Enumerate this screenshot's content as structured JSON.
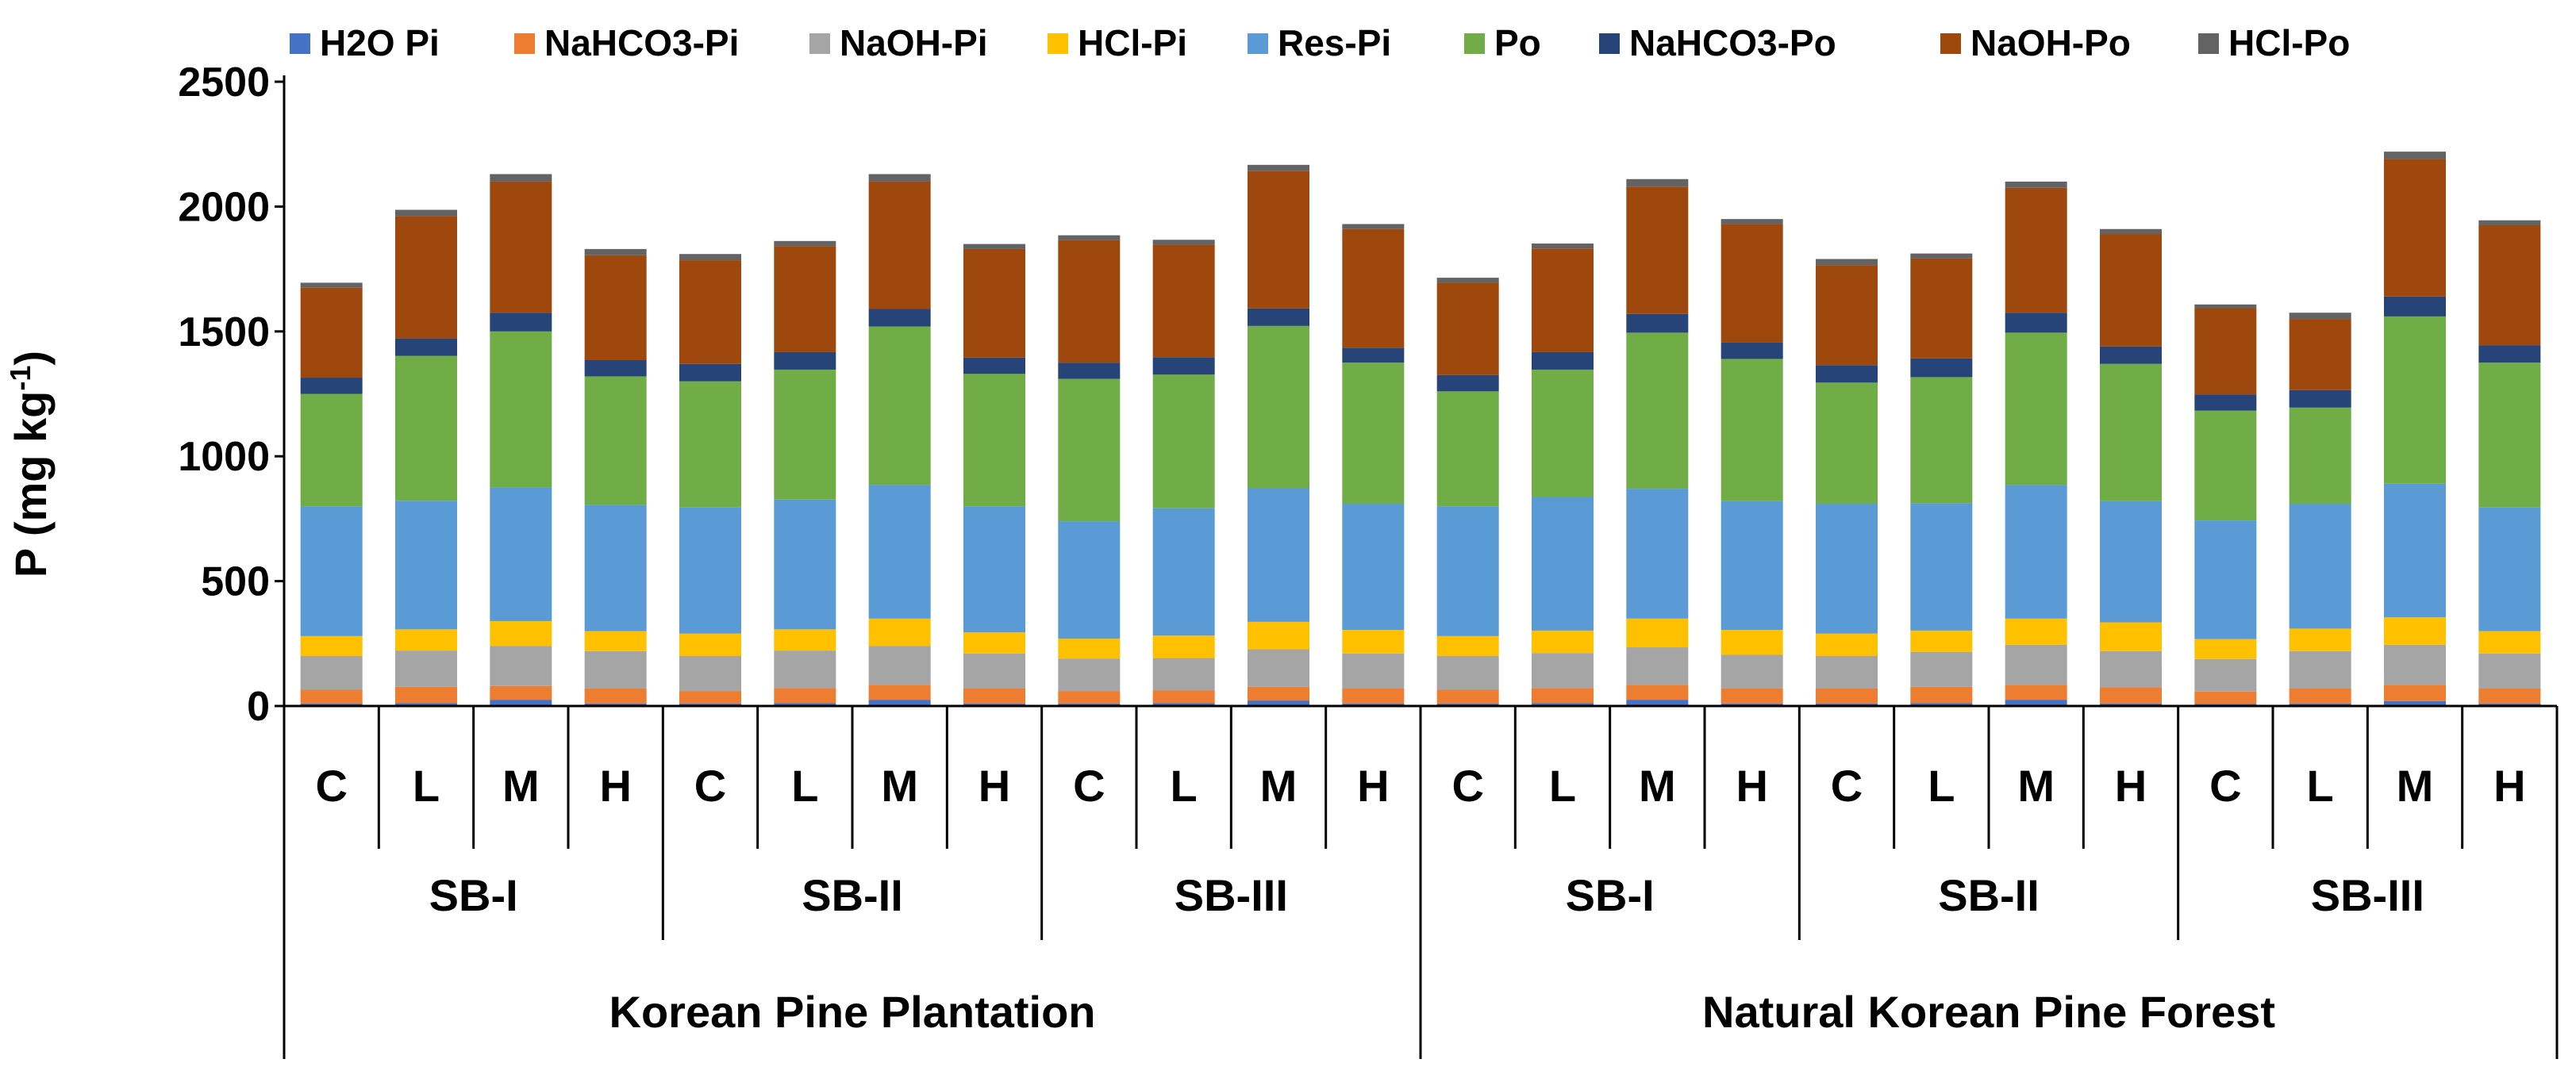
{
  "chart_data": {
    "type": "bar",
    "stacked": true,
    "ylabel_main": "P (mg kg",
    "ylabel_sup": "-1",
    "ylabel_close": ")",
    "ylim": [
      0,
      2500
    ],
    "yticks": [
      0,
      500,
      1000,
      1500,
      2000,
      2500
    ],
    "legend_position": "top",
    "categories": [
      "C",
      "L",
      "M",
      "H",
      "C",
      "L",
      "M",
      "H",
      "C",
      "L",
      "M",
      "H",
      "C",
      "L",
      "M",
      "H",
      "C",
      "L",
      "M",
      "H",
      "C",
      "L",
      "M",
      "H"
    ],
    "groups": [
      {
        "label": "SB-I",
        "span": 4
      },
      {
        "label": "SB-II",
        "span": 4
      },
      {
        "label": "SB-III",
        "span": 4
      },
      {
        "label": "SB-I",
        "span": 4
      },
      {
        "label": "SB-II",
        "span": 4
      },
      {
        "label": "SB-III",
        "span": 4
      }
    ],
    "supergroups": [
      {
        "label": "Korean Pine Plantation",
        "span": 12
      },
      {
        "label": "Natural Korean Pine Forest",
        "span": 12
      }
    ],
    "series": [
      {
        "name": "H2O Pi",
        "color": "#4472C4",
        "values": [
          10,
          12,
          25,
          10,
          10,
          12,
          25,
          10,
          10,
          12,
          22,
          10,
          10,
          12,
          25,
          10,
          10,
          12,
          25,
          10,
          8,
          10,
          20,
          10
        ]
      },
      {
        "name": "NaHCO3-Pi",
        "color": "#ED7D31",
        "values": [
          55,
          65,
          55,
          60,
          50,
          60,
          60,
          60,
          50,
          50,
          55,
          60,
          55,
          60,
          60,
          60,
          60,
          65,
          60,
          65,
          50,
          60,
          65,
          60
        ]
      },
      {
        "name": "NaOH-Pi",
        "color": "#A5A5A5",
        "values": [
          135,
          145,
          160,
          150,
          140,
          150,
          155,
          140,
          130,
          130,
          150,
          140,
          135,
          140,
          150,
          135,
          130,
          140,
          160,
          145,
          130,
          150,
          160,
          140
        ]
      },
      {
        "name": "HCl-Pi",
        "color": "#FFC000",
        "values": [
          80,
          85,
          100,
          80,
          90,
          85,
          110,
          85,
          80,
          90,
          110,
          95,
          80,
          90,
          115,
          100,
          90,
          85,
          105,
          115,
          80,
          90,
          110,
          90
        ]
      },
      {
        "name": "Res-Pi",
        "color": "#5B9BD5",
        "values": [
          520,
          515,
          535,
          505,
          505,
          520,
          535,
          505,
          470,
          510,
          535,
          505,
          520,
          535,
          520,
          515,
          520,
          510,
          535,
          485,
          475,
          500,
          535,
          495
        ]
      },
      {
        "name": "Po",
        "color": "#70AD47",
        "values": [
          450,
          580,
          625,
          515,
          505,
          520,
          635,
          530,
          570,
          535,
          650,
          565,
          460,
          510,
          625,
          570,
          485,
          505,
          610,
          550,
          440,
          385,
          670,
          580
        ]
      },
      {
        "name": "NaHCO3-Po",
        "color": "#264478",
        "values": [
          65,
          70,
          75,
          65,
          70,
          70,
          70,
          65,
          65,
          70,
          70,
          60,
          65,
          70,
          75,
          65,
          70,
          75,
          80,
          70,
          65,
          70,
          80,
          70
        ]
      },
      {
        "name": "NaOH-Po",
        "color": "#9E480E",
        "values": [
          360,
          490,
          525,
          420,
          415,
          425,
          510,
          435,
          490,
          450,
          550,
          475,
          370,
          415,
          510,
          475,
          400,
          400,
          500,
          450,
          345,
          285,
          550,
          480
        ]
      },
      {
        "name": "HCl-Po",
        "color": "#636363",
        "values": [
          20,
          25,
          30,
          25,
          25,
          20,
          30,
          20,
          20,
          20,
          25,
          20,
          20,
          20,
          30,
          20,
          25,
          20,
          25,
          20,
          15,
          25,
          30,
          20
        ]
      }
    ]
  }
}
